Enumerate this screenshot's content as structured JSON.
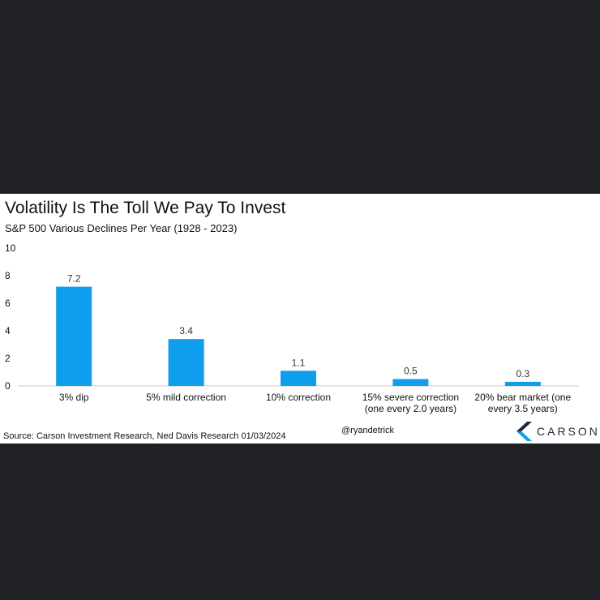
{
  "chart_data": {
    "type": "bar",
    "title": "Volatility Is The Toll We Pay To Invest",
    "subtitle": "S&P 500 Various Declines Per Year (1928 - 2023)",
    "categories": [
      [
        "3% dip"
      ],
      [
        "5% mild correction"
      ],
      [
        "10% correction"
      ],
      [
        "15% severe correction",
        "(one every 2.0 years)"
      ],
      [
        "20% bear market (one",
        "every 3.5  years)"
      ]
    ],
    "values": [
      7.2,
      3.4,
      1.1,
      0.5,
      0.3
    ],
    "value_labels": [
      "7.2",
      "3.4",
      "1.1",
      "0.5",
      "0.3"
    ],
    "ylim": [
      0,
      10
    ],
    "yticks": [
      0,
      2,
      4,
      6,
      8,
      10
    ],
    "xlabel": "",
    "ylabel": "",
    "grid": false,
    "legend": "none",
    "bar_color": "#0f9ded"
  },
  "footer": {
    "source": "Source: Carson Investment Research, Ned Davis Research 01/03/2024",
    "handle": "@ryandetrick"
  },
  "logo": {
    "text": "CARSON",
    "icon": "carson-chevron-icon",
    "colors": [
      "#1d2a3a",
      "#0f9ded"
    ]
  }
}
